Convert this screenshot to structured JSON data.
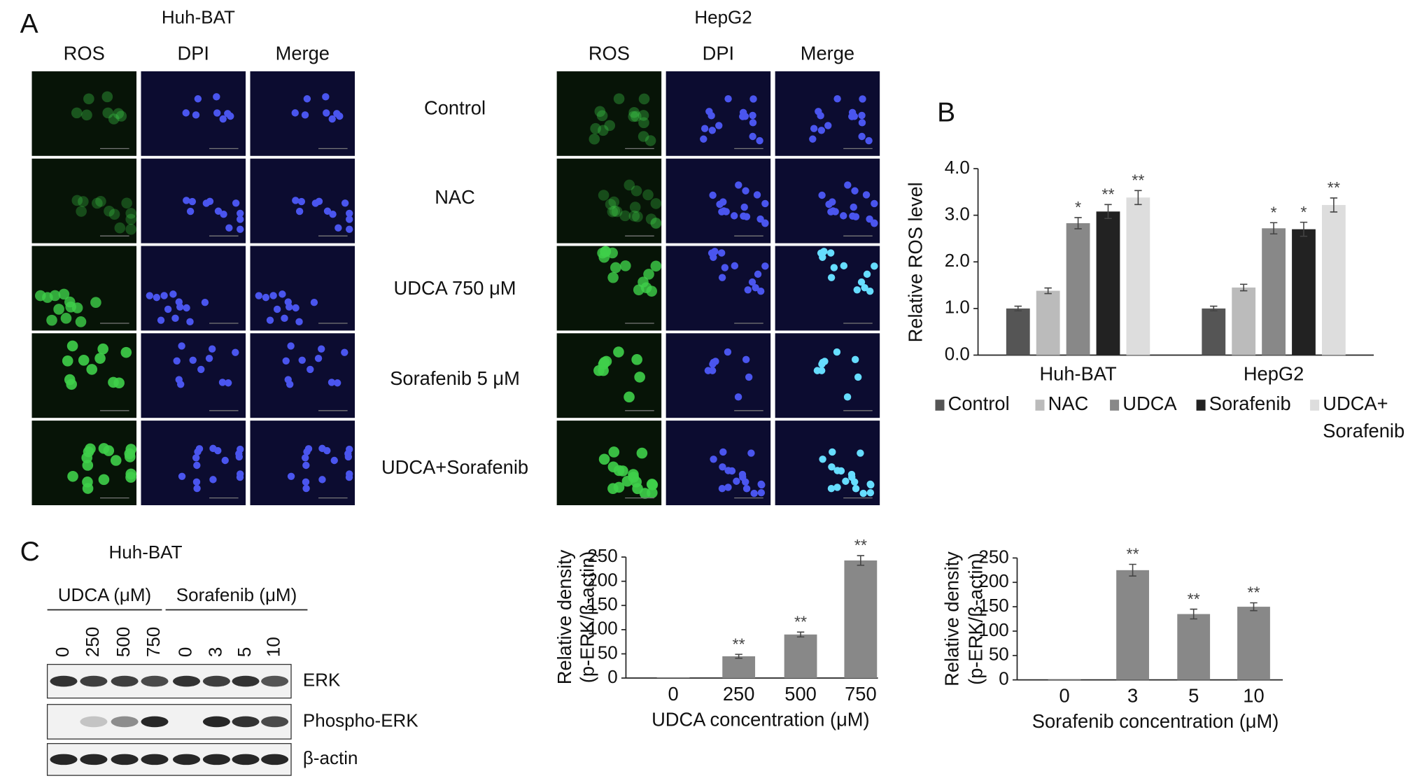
{
  "figure": {
    "panel_labels": [
      "A",
      "B",
      "C"
    ],
    "panel_a": {
      "cell_lines": [
        "Huh-BAT",
        "HepG2"
      ],
      "channels": [
        "ROS",
        "DPI",
        "Merge"
      ],
      "treatments": [
        "Control",
        "NAC",
        "UDCA 750 μM",
        "Sorafenib 5 μM",
        "UDCA+Sorafenib"
      ]
    },
    "panel_c_blot": {
      "cell_line": "Huh-BAT",
      "groups": [
        "UDCA (μM)",
        "Sorafenib (μM)"
      ],
      "lanes": [
        "0",
        "250",
        "500",
        "750",
        "0",
        "3",
        "5",
        "10"
      ],
      "proteins": [
        "ERK",
        "Phospho-ERK",
        "β-actin"
      ]
    }
  },
  "chart_data": [
    {
      "type": "bar",
      "ylabel": "Relative ROS level",
      "categories": [
        "Huh-BAT",
        "HepG2"
      ],
      "series": [
        {
          "name": "Control",
          "color": "#555555",
          "values": [
            1.0,
            1.0
          ],
          "errors": [
            0.05,
            0.05
          ],
          "annotations": [
            null,
            null
          ]
        },
        {
          "name": "NAC",
          "color": "#bbbbbb",
          "values": [
            1.38,
            1.45
          ],
          "errors": [
            0.06,
            0.07
          ],
          "annotations": [
            null,
            null
          ]
        },
        {
          "name": "UDCA",
          "color": "#888888",
          "values": [
            2.83,
            2.72
          ],
          "errors": [
            0.12,
            0.12
          ],
          "annotations": [
            "*",
            "*"
          ]
        },
        {
          "name": "Sorafenib",
          "color": "#222222",
          "values": [
            3.08,
            2.7
          ],
          "errors": [
            0.15,
            0.15
          ],
          "annotations": [
            "**",
            "*"
          ]
        },
        {
          "name": "UDCA+Sorafenib",
          "color": "#dddddd",
          "values": [
            3.38,
            3.22
          ],
          "errors": [
            0.15,
            0.15
          ],
          "annotations": [
            "**",
            "**"
          ]
        }
      ],
      "ylim": [
        0,
        4
      ],
      "yticks": [
        {
          "value": 0,
          "label": "0.0"
        },
        {
          "value": 1,
          "label": "1.0"
        },
        {
          "value": 2,
          "label": "2.0"
        },
        {
          "value": 3,
          "label": "3.0"
        },
        {
          "value": 4,
          "label": "4.0"
        }
      ]
    },
    {
      "type": "bar",
      "ylabel": [
        "Relative density",
        "(p-ERK/β-actin)"
      ],
      "xlabel": "UDCA concentration (μM)",
      "categories": [
        "0",
        "250",
        "500",
        "750"
      ],
      "values": [
        1,
        45,
        90,
        243
      ],
      "errors": [
        0,
        4,
        5,
        10
      ],
      "annotations": [
        null,
        "**",
        "**",
        "**"
      ],
      "color": "#888888",
      "ylim": [
        0,
        250
      ],
      "yticks": [
        0,
        50,
        100,
        150,
        200,
        250
      ]
    },
    {
      "type": "bar",
      "ylabel": [
        "Relative density",
        "(p-ERK/β-actin)"
      ],
      "xlabel": "Sorafenib concentration (μM)",
      "categories": [
        "0",
        "3",
        "5",
        "10"
      ],
      "values": [
        1,
        225,
        135,
        150
      ],
      "errors": [
        0,
        12,
        10,
        8
      ],
      "annotations": [
        null,
        "**",
        "**",
        "**"
      ],
      "color": "#888888",
      "ylim": [
        0,
        250
      ],
      "yticks": [
        0,
        50,
        100,
        150,
        200,
        250
      ]
    }
  ]
}
